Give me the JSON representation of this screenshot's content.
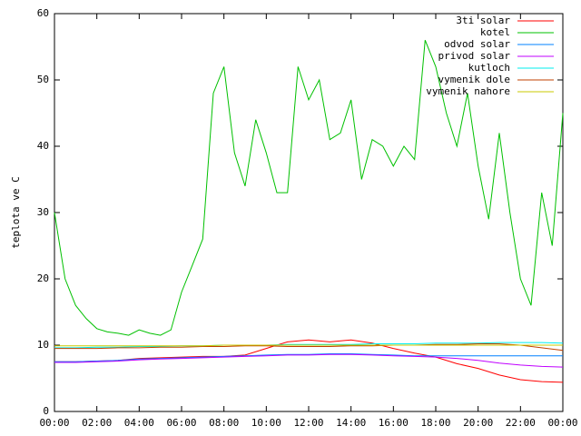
{
  "chart_data": {
    "type": "line",
    "y_label": "teplota ve C",
    "xlim": [
      0,
      24
    ],
    "xticks": [
      {
        "value": 0,
        "label": "00:00"
      },
      {
        "value": 2,
        "label": "02:00"
      },
      {
        "value": 4,
        "label": "04:00"
      },
      {
        "value": 6,
        "label": "06:00"
      },
      {
        "value": 8,
        "label": "08:00"
      },
      {
        "value": 10,
        "label": "10:00"
      },
      {
        "value": 12,
        "label": "12:00"
      },
      {
        "value": 14,
        "label": "14:00"
      },
      {
        "value": 16,
        "label": "16:00"
      },
      {
        "value": 18,
        "label": "18:00"
      },
      {
        "value": 20,
        "label": "20:00"
      },
      {
        "value": 22,
        "label": "22:00"
      },
      {
        "value": 24,
        "label": "00:00"
      }
    ],
    "ylim": [
      0,
      60
    ],
    "yticks": [
      0,
      10,
      20,
      30,
      40,
      50,
      60
    ],
    "legend": "top-right",
    "series": [
      {
        "name": "3ti solar",
        "color": "#ff0000",
        "x": [
          0,
          1,
          2,
          3,
          4,
          5,
          6,
          7,
          8,
          9,
          10,
          11,
          12,
          13,
          14,
          15,
          16,
          17,
          18,
          19,
          20,
          21,
          22,
          23,
          24
        ],
        "values": [
          7.5,
          7.5,
          7.6,
          7.7,
          8.0,
          8.1,
          8.2,
          8.3,
          8.3,
          8.5,
          9.5,
          10.5,
          10.8,
          10.5,
          10.8,
          10.3,
          9.5,
          8.8,
          8.2,
          7.2,
          6.5,
          5.5,
          4.8,
          4.5,
          4.4
        ]
      },
      {
        "name": "kotel",
        "color": "#00c000",
        "x": [
          0,
          0.5,
          1,
          1.5,
          2,
          2.5,
          3,
          3.5,
          4,
          4.5,
          5,
          5.5,
          6,
          6.5,
          7,
          7.5,
          8,
          8.5,
          9,
          9.5,
          10,
          10.5,
          11,
          11.5,
          12,
          12.5,
          13,
          13.5,
          14,
          14.5,
          15,
          15.5,
          16,
          16.5,
          17,
          17.5,
          18,
          18.5,
          19,
          19.5,
          20,
          20.5,
          21,
          21.5,
          22,
          22.5,
          23,
          23.5,
          24
        ],
        "values": [
          30,
          20,
          16,
          14,
          12.5,
          12,
          11.8,
          11.5,
          12.3,
          11.8,
          11.5,
          12.3,
          18,
          22,
          26,
          48,
          52,
          39,
          34,
          44,
          39,
          33,
          33,
          52,
          47,
          50,
          41,
          42,
          47,
          35,
          41,
          40,
          37,
          40,
          38,
          56,
          52,
          45,
          40,
          48,
          37,
          29,
          42,
          30,
          20,
          16,
          33,
          25,
          45
        ]
      },
      {
        "name": "odvod solar",
        "color": "#0080ff",
        "x": [
          0,
          1,
          2,
          3,
          4,
          5,
          6,
          7,
          8,
          9,
          10,
          11,
          12,
          13,
          14,
          15,
          16,
          17,
          18,
          19,
          20,
          21,
          22,
          23,
          24
        ],
        "values": [
          7.5,
          7.5,
          7.6,
          7.7,
          7.9,
          8.0,
          8.1,
          8.2,
          8.3,
          8.4,
          8.5,
          8.6,
          8.6,
          8.7,
          8.7,
          8.6,
          8.5,
          8.4,
          8.4,
          8.4,
          8.4,
          8.4,
          8.4,
          8.4,
          8.4
        ]
      },
      {
        "name": "privod solar",
        "color": "#c000ff",
        "x": [
          0,
          1,
          2,
          3,
          4,
          5,
          6,
          7,
          8,
          9,
          10,
          11,
          12,
          13,
          14,
          15,
          16,
          17,
          18,
          19,
          20,
          21,
          22,
          23,
          24
        ],
        "values": [
          7.4,
          7.4,
          7.5,
          7.6,
          7.8,
          7.9,
          8.0,
          8.1,
          8.2,
          8.3,
          8.4,
          8.5,
          8.5,
          8.6,
          8.6,
          8.5,
          8.4,
          8.3,
          8.2,
          8.0,
          7.7,
          7.3,
          7.0,
          6.8,
          6.7
        ]
      },
      {
        "name": "kutloch",
        "color": "#00eeee",
        "x": [
          0,
          1,
          2,
          3,
          4,
          5,
          6,
          7,
          8,
          9,
          10,
          11,
          12,
          13,
          14,
          15,
          16,
          17,
          18,
          19,
          20,
          21,
          22,
          23,
          24
        ],
        "values": [
          9.6,
          9.6,
          9.7,
          9.7,
          9.8,
          9.8,
          9.9,
          9.9,
          10.0,
          10.0,
          10.0,
          10.1,
          10.1,
          10.1,
          10.1,
          10.2,
          10.2,
          10.2,
          10.3,
          10.3,
          10.3,
          10.4,
          10.4,
          10.4,
          10.3
        ]
      },
      {
        "name": "vymenik dole",
        "color": "#c04000",
        "x": [
          0,
          1,
          2,
          3,
          4,
          5,
          6,
          7,
          8,
          9,
          10,
          11,
          12,
          13,
          14,
          15,
          16,
          17,
          18,
          19,
          20,
          21,
          22,
          23,
          24
        ],
        "values": [
          9.5,
          9.5,
          9.5,
          9.6,
          9.6,
          9.7,
          9.7,
          9.8,
          9.8,
          9.9,
          9.9,
          9.8,
          9.8,
          9.8,
          9.9,
          9.9,
          10.0,
          10.0,
          10.1,
          10.1,
          10.2,
          10.2,
          10.0,
          9.6,
          9.2
        ]
      },
      {
        "name": "vymenik nahore",
        "color": "#c8c800",
        "x": [
          0,
          1,
          2,
          3,
          4,
          5,
          6,
          7,
          8,
          9,
          10,
          11,
          12,
          13,
          14,
          15,
          16,
          17,
          18,
          19,
          20,
          21,
          22,
          23,
          24
        ],
        "values": [
          9.9,
          9.9,
          9.9,
          9.9,
          9.9,
          9.9,
          9.9,
          9.9,
          10.0,
          10.0,
          10.0,
          10.0,
          10.0,
          10.0,
          10.0,
          10.0,
          10.0,
          10.0,
          10.0,
          10.0,
          10.0,
          10.0,
          10.0,
          10.0,
          10.0
        ]
      }
    ]
  }
}
